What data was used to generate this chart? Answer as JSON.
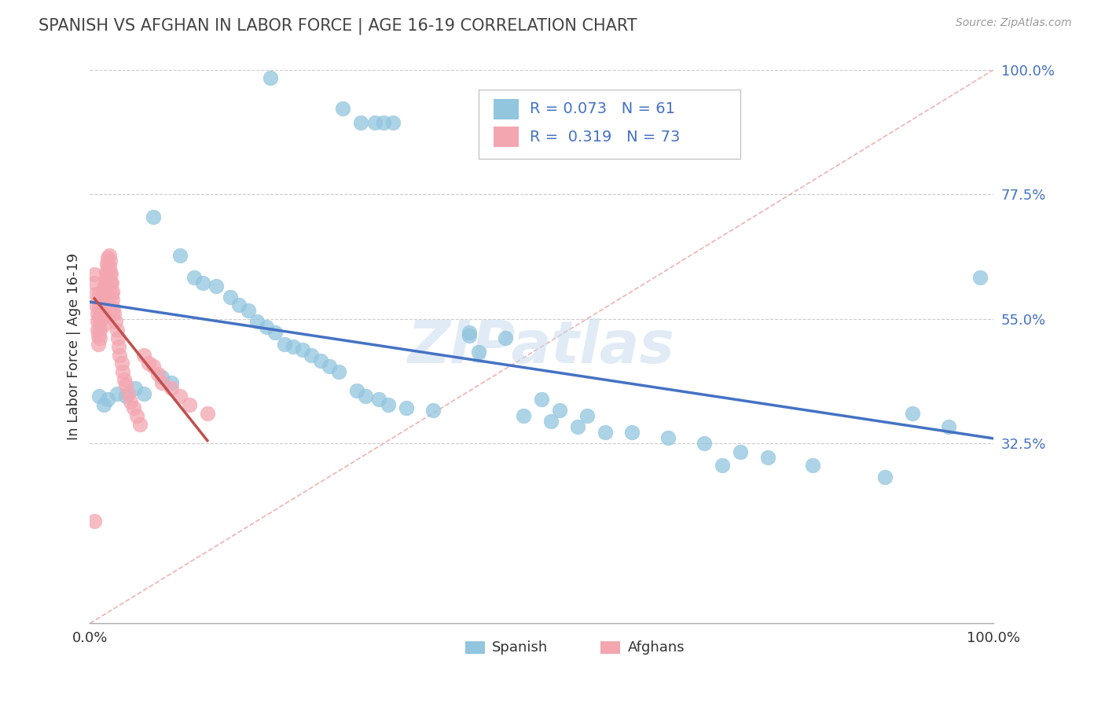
{
  "title": "SPANISH VS AFGHAN IN LABOR FORCE | AGE 16-19 CORRELATION CHART",
  "source": "Source: ZipAtlas.com",
  "ylabel": "In Labor Force | Age 16-19",
  "R_spanish": 0.073,
  "N_spanish": 61,
  "R_afghan": 0.319,
  "N_afghan": 73,
  "spanish_color": "#92C5DE",
  "afghan_color": "#F4A6B0",
  "trend_spanish_color": "#4472C4",
  "trend_afghan_color": "#C0504D",
  "watermark": "ZIPatlas",
  "background_color": "#FFFFFF",
  "xlim": [
    0.0,
    1.0
  ],
  "ylim": [
    0.0,
    1.0
  ],
  "spanish_x": [
    0.2,
    0.28,
    0.3,
    0.315,
    0.325,
    0.335,
    0.07,
    0.1,
    0.115,
    0.125,
    0.14,
    0.155,
    0.165,
    0.175,
    0.185,
    0.195,
    0.205,
    0.215,
    0.225,
    0.235,
    0.245,
    0.255,
    0.265,
    0.275,
    0.08,
    0.09,
    0.05,
    0.06,
    0.03,
    0.04,
    0.01,
    0.02,
    0.015,
    0.295,
    0.305,
    0.32,
    0.33,
    0.35,
    0.38,
    0.42,
    0.46,
    0.5,
    0.52,
    0.55,
    0.42,
    0.48,
    0.51,
    0.54,
    0.57,
    0.6,
    0.64,
    0.68,
    0.72,
    0.8,
    0.88,
    0.91,
    0.95,
    0.985,
    0.43,
    0.75,
    0.7
  ],
  "spanish_y": [
    0.985,
    0.93,
    0.905,
    0.905,
    0.905,
    0.905,
    0.735,
    0.665,
    0.625,
    0.615,
    0.61,
    0.59,
    0.575,
    0.565,
    0.545,
    0.535,
    0.525,
    0.505,
    0.5,
    0.495,
    0.485,
    0.475,
    0.465,
    0.455,
    0.445,
    0.435,
    0.425,
    0.415,
    0.415,
    0.41,
    0.41,
    0.405,
    0.395,
    0.42,
    0.41,
    0.405,
    0.395,
    0.39,
    0.385,
    0.525,
    0.515,
    0.405,
    0.385,
    0.375,
    0.52,
    0.375,
    0.365,
    0.355,
    0.345,
    0.345,
    0.335,
    0.325,
    0.31,
    0.285,
    0.265,
    0.38,
    0.355,
    0.625,
    0.49,
    0.3,
    0.285
  ],
  "afghan_x": [
    0.005,
    0.005,
    0.007,
    0.007,
    0.008,
    0.008,
    0.008,
    0.009,
    0.009,
    0.01,
    0.01,
    0.01,
    0.011,
    0.011,
    0.011,
    0.012,
    0.012,
    0.012,
    0.013,
    0.013,
    0.013,
    0.014,
    0.014,
    0.015,
    0.015,
    0.015,
    0.016,
    0.016,
    0.017,
    0.017,
    0.018,
    0.018,
    0.019,
    0.019,
    0.02,
    0.02,
    0.02,
    0.021,
    0.021,
    0.022,
    0.022,
    0.023,
    0.023,
    0.024,
    0.024,
    0.025,
    0.025,
    0.026,
    0.027,
    0.028,
    0.03,
    0.031,
    0.032,
    0.033,
    0.035,
    0.036,
    0.038,
    0.04,
    0.042,
    0.045,
    0.048,
    0.052,
    0.055,
    0.06,
    0.065,
    0.07,
    0.075,
    0.08,
    0.09,
    0.1,
    0.11,
    0.13,
    0.005
  ],
  "afghan_y": [
    0.63,
    0.615,
    0.595,
    0.575,
    0.56,
    0.545,
    0.53,
    0.52,
    0.505,
    0.595,
    0.575,
    0.555,
    0.545,
    0.53,
    0.515,
    0.58,
    0.565,
    0.55,
    0.58,
    0.565,
    0.55,
    0.6,
    0.585,
    0.57,
    0.555,
    0.54,
    0.61,
    0.595,
    0.62,
    0.605,
    0.635,
    0.615,
    0.65,
    0.63,
    0.66,
    0.645,
    0.625,
    0.665,
    0.645,
    0.655,
    0.635,
    0.63,
    0.615,
    0.615,
    0.595,
    0.6,
    0.585,
    0.57,
    0.56,
    0.545,
    0.53,
    0.515,
    0.5,
    0.485,
    0.47,
    0.455,
    0.44,
    0.43,
    0.415,
    0.4,
    0.39,
    0.375,
    0.36,
    0.485,
    0.47,
    0.465,
    0.45,
    0.435,
    0.425,
    0.41,
    0.395,
    0.38,
    0.185
  ]
}
